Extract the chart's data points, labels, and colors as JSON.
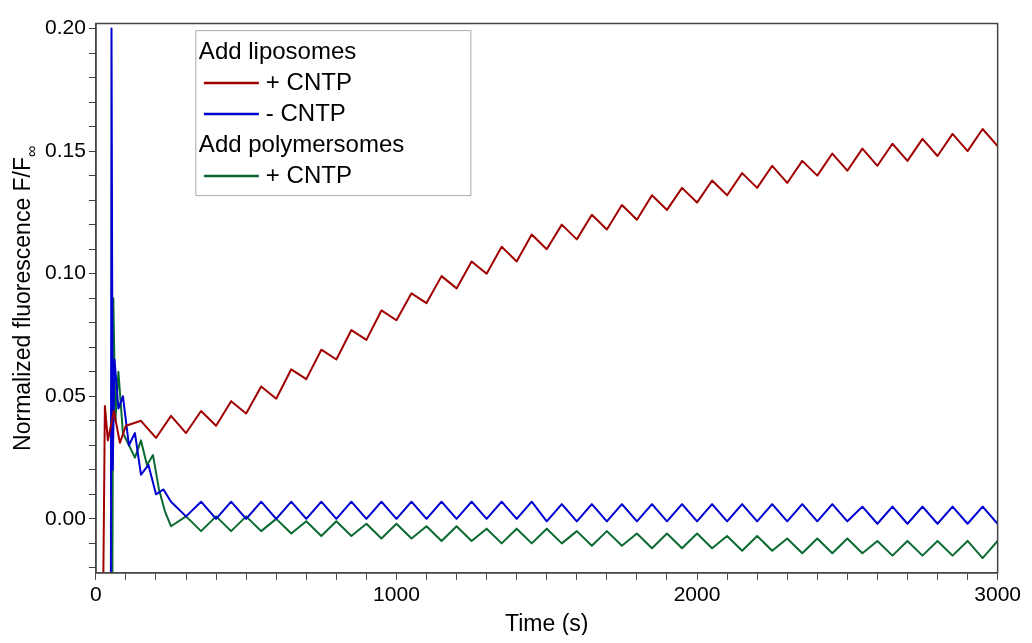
{
  "chart_data": {
    "type": "line",
    "xlabel": "Time (s)",
    "ylabel": "Normalized fluorescence F/F$_{∞}$",
    "legend_title": "Add liposomes",
    "annotations": [
      "Add polymersomes"
    ],
    "legend": "top left",
    "grid": false,
    "marker": "none",
    "line_style": "solid",
    "xlim": [
      0,
      3000
    ],
    "ylim": [
      -0.022,
      0.202
    ],
    "xticks": [
      0,
      {
        "value": 100,
        "label": null
      },
      {
        "value": 200,
        "label": null
      },
      {
        "value": 300,
        "label": null
      },
      {
        "value": 400,
        "label": null
      },
      {
        "value": 500,
        "label": null
      },
      {
        "value": 600,
        "label": null
      },
      {
        "value": 700,
        "label": null
      },
      {
        "value": 800,
        "label": null
      },
      {
        "value": 900,
        "label": null
      },
      1000,
      {
        "value": 1100,
        "label": null
      },
      {
        "value": 1200,
        "label": null
      },
      {
        "value": 1300,
        "label": null
      },
      {
        "value": 1400,
        "label": null
      },
      {
        "value": 1500,
        "label": null
      },
      {
        "value": 1600,
        "label": null
      },
      {
        "value": 1700,
        "label": null
      },
      {
        "value": 1800,
        "label": null
      },
      {
        "value": 1900,
        "label": null
      },
      2000,
      {
        "value": 2100,
        "label": null
      },
      {
        "value": 2200,
        "label": null
      },
      {
        "value": 2300,
        "label": null
      },
      {
        "value": 2400,
        "label": null
      },
      {
        "value": 2500,
        "label": null
      },
      {
        "value": 2600,
        "label": null
      },
      {
        "value": 2700,
        "label": null
      },
      {
        "value": 2800,
        "label": null
      },
      {
        "value": 2900,
        "label": null
      },
      3000
    ],
    "yticks": [
      {
        "value": -0.02,
        "label": null
      },
      {
        "value": -0.01,
        "label": null
      },
      {
        "value": 0,
        "label": "0.00"
      },
      {
        "value": 0.01,
        "label": null
      },
      {
        "value": 0.02,
        "label": null
      },
      {
        "value": 0.03,
        "label": null
      },
      {
        "value": 0.04,
        "label": null
      },
      {
        "value": 0.05,
        "label": "0.05"
      },
      {
        "value": 0.06,
        "label": null
      },
      {
        "value": 0.07,
        "label": null
      },
      {
        "value": 0.08,
        "label": null
      },
      {
        "value": 0.09,
        "label": null
      },
      {
        "value": 0.1,
        "label": "0.10"
      },
      {
        "value": 0.11,
        "label": null
      },
      {
        "value": 0.12,
        "label": null
      },
      {
        "value": 0.13,
        "label": null
      },
      {
        "value": 0.14,
        "label": null
      },
      {
        "value": 0.15,
        "label": "0.15"
      },
      {
        "value": 0.16,
        "label": null
      },
      {
        "value": 0.17,
        "label": null
      },
      {
        "value": 0.18,
        "label": null
      },
      {
        "value": 0.19,
        "label": null
      },
      {
        "value": 0.2,
        "label": "0.20"
      }
    ],
    "series": [
      {
        "name": "+ CNTP",
        "color": "#a00000",
        "x": [
          25,
          30,
          40,
          60,
          80,
          100,
          150,
          200,
          250,
          300,
          350,
          400,
          450,
          500,
          550,
          600,
          650,
          700,
          750,
          800,
          850,
          900,
          950,
          1000,
          1050,
          1100,
          1150,
          1200,
          1250,
          1300,
          1350,
          1400,
          1450,
          1500,
          1550,
          1600,
          1650,
          1700,
          1750,
          1800,
          1850,
          1900,
          1950,
          2000,
          2050,
          2100,
          2150,
          2200,
          2250,
          2300,
          2350,
          2400,
          2450,
          2500,
          2550,
          2600,
          2650,
          2700,
          2750,
          2800,
          2850,
          2900,
          2950,
          3000
        ],
        "values": [
          -0.022,
          0.046,
          0.032,
          0.044,
          0.031,
          0.038,
          0.04,
          0.033,
          0.042,
          0.035,
          0.044,
          0.038,
          0.048,
          0.043,
          0.054,
          0.049,
          0.061,
          0.057,
          0.069,
          0.065,
          0.077,
          0.073,
          0.085,
          0.081,
          0.092,
          0.088,
          0.099,
          0.094,
          0.105,
          0.1,
          0.111,
          0.105,
          0.116,
          0.11,
          0.12,
          0.114,
          0.124,
          0.118,
          0.128,
          0.122,
          0.132,
          0.126,
          0.135,
          0.129,
          0.138,
          0.132,
          0.141,
          0.135,
          0.144,
          0.137,
          0.146,
          0.14,
          0.149,
          0.142,
          0.151,
          0.144,
          0.153,
          0.146,
          0.155,
          0.148,
          0.157,
          0.15,
          0.159,
          0.152
        ]
      },
      {
        "name": "- CNTP",
        "color": "#0000d0",
        "x": [
          50,
          52,
          56,
          62,
          75,
          90,
          110,
          130,
          150,
          175,
          200,
          225,
          250,
          300,
          350,
          400,
          450,
          500,
          550,
          600,
          650,
          700,
          750,
          800,
          850,
          900,
          950,
          1000,
          1050,
          1100,
          1150,
          1200,
          1250,
          1300,
          1350,
          1400,
          1450,
          1500,
          1550,
          1600,
          1650,
          1700,
          1750,
          1800,
          1850,
          1900,
          1950,
          2000,
          2050,
          2100,
          2150,
          2200,
          2250,
          2300,
          2350,
          2400,
          2450,
          2500,
          2550,
          2600,
          2650,
          2700,
          2750,
          2800,
          2850,
          2900,
          2950,
          3000
        ],
        "values": [
          -0.022,
          0.2,
          0.02,
          0.065,
          0.045,
          0.05,
          0.03,
          0.035,
          0.018,
          0.022,
          0.01,
          0.012,
          0.007,
          0.001,
          0.007,
          0.0,
          0.007,
          0.0,
          0.007,
          0.0,
          0.007,
          0.0,
          0.007,
          0.0,
          0.007,
          0.0,
          0.007,
          0.0,
          0.007,
          0.0,
          0.007,
          0.0,
          0.007,
          0.0,
          0.007,
          0.0,
          0.007,
          -0.001,
          0.006,
          -0.001,
          0.006,
          -0.001,
          0.006,
          -0.001,
          0.006,
          -0.001,
          0.006,
          -0.001,
          0.006,
          -0.001,
          0.006,
          -0.001,
          0.006,
          -0.001,
          0.006,
          -0.001,
          0.006,
          -0.001,
          0.005,
          -0.002,
          0.005,
          -0.002,
          0.005,
          -0.002,
          0.005,
          -0.002,
          0.005,
          -0.002
        ]
      },
      {
        "name": "+ CNTP",
        "color": "#0a6a32",
        "x": [
          55,
          58,
          65,
          75,
          90,
          110,
          130,
          150,
          170,
          190,
          210,
          230,
          250,
          300,
          350,
          400,
          450,
          500,
          550,
          600,
          650,
          700,
          750,
          800,
          850,
          900,
          950,
          1000,
          1050,
          1100,
          1150,
          1200,
          1250,
          1300,
          1350,
          1400,
          1450,
          1500,
          1550,
          1600,
          1650,
          1700,
          1750,
          1800,
          1850,
          1900,
          1950,
          2000,
          2050,
          2100,
          2150,
          2200,
          2250,
          2300,
          2350,
          2400,
          2450,
          2500,
          2550,
          2600,
          2650,
          2700,
          2750,
          2800,
          2850,
          2900,
          2950,
          3000
        ],
        "values": [
          -0.022,
          0.09,
          0.04,
          0.06,
          0.035,
          0.03,
          0.025,
          0.032,
          0.022,
          0.026,
          0.012,
          0.003,
          -0.003,
          0.001,
          -0.005,
          0.001,
          -0.005,
          0.001,
          -0.005,
          0.0,
          -0.006,
          -0.001,
          -0.007,
          -0.001,
          -0.007,
          -0.002,
          -0.008,
          -0.002,
          -0.008,
          -0.003,
          -0.009,
          -0.003,
          -0.009,
          -0.004,
          -0.01,
          -0.004,
          -0.01,
          -0.004,
          -0.01,
          -0.005,
          -0.011,
          -0.005,
          -0.011,
          -0.006,
          -0.012,
          -0.006,
          -0.012,
          -0.006,
          -0.012,
          -0.007,
          -0.013,
          -0.007,
          -0.013,
          -0.008,
          -0.014,
          -0.008,
          -0.014,
          -0.008,
          -0.014,
          -0.009,
          -0.015,
          -0.009,
          -0.015,
          -0.009,
          -0.015,
          -0.009,
          -0.016,
          -0.009
        ]
      }
    ]
  }
}
